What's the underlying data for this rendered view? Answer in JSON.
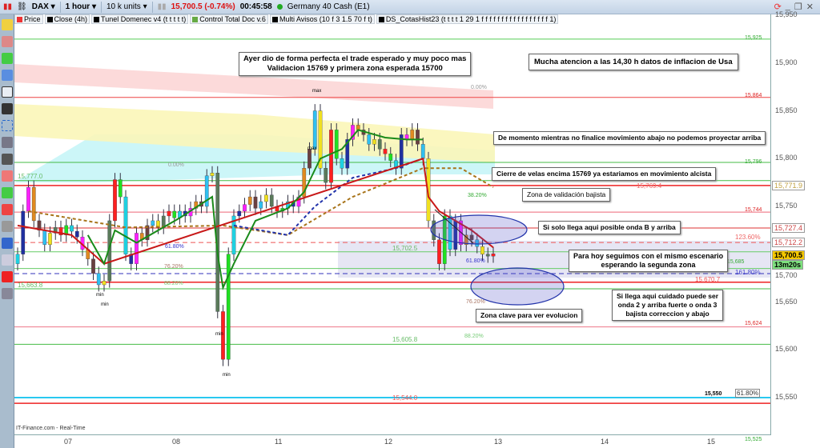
{
  "topbar": {
    "symbol": "DAX ▾",
    "timeframe": "1 hour ▾",
    "units": "10 k units ▾",
    "price": "15,700.5 (-0.74%)",
    "countdown": "00:45:58",
    "instrument": "Germany 40 Cash (E1)"
  },
  "indicators": [
    "Price",
    "Close (4h)",
    "Tunel Domenec v4 (t t t t t)",
    "Control Total Doc v.6",
    "Multi Avisos (10 f 3 1.5 70 f t)",
    "DS_CotasHist23 (t t t t 1 29 1 f f f f f f f f f f f f f f f f f 1)"
  ],
  "window_controls": [
    "⟳",
    "_",
    "❐",
    "✕"
  ],
  "price_axis": {
    "ticks": [
      "15,950",
      "15,900",
      "15,850",
      "15,800",
      "15,750",
      "15,700",
      "15,650",
      "15,600",
      "15,550"
    ],
    "tags": [
      {
        "text": "15,771.9",
        "color": "#c0a040"
      },
      {
        "text": "15,727.4",
        "color": "#c44"
      },
      {
        "text": "15,712.2",
        "color": "#c44"
      },
      {
        "text": "15,700.5",
        "color": "#000",
        "bg": "#f5c800"
      },
      {
        "text": "13m20s",
        "color": "#000",
        "bg": "#7ee07e"
      }
    ]
  },
  "time_axis": [
    "07",
    "08",
    "11",
    "12",
    "13",
    "14",
    "15"
  ],
  "footer": "IT-Finance.com - Real-Time",
  "notes": [
    "Ayer dio de forma perfecta el trade esperado y muy poco mas\nValidacion 15769 y primera zona esperada 15700",
    "Mucha atencion a las 14,30 h datos de inflacion de Usa",
    "De momento mientras no finalice movimiento abajo no podemos proyectar arriba",
    "Cierre de velas encima 15769 ya estariamos en movimiento alcista",
    "Zona de validación bajista",
    "Si solo llega aqui posible onda B y arriba",
    "Para hoy seguimos con el mismo escenario\nesperando la segunda zona",
    "Si llega aqui cuidado puede ser\nonda 2 y arriba fuerte o onda 3\nbajista correccion y abajo",
    "Zona clave para ver evolucion"
  ],
  "level_labels": [
    "15,925",
    "15,864",
    "15,796",
    "15,744",
    "15,685",
    "15,624",
    "15,550",
    "15,525",
    "15,769.4",
    "15,702.5",
    "15,605.8",
    "15,544.0",
    "15,777.0",
    "15,663.8",
    "15,670.7"
  ],
  "fib_labels": [
    "0.00%",
    "0.00%",
    "38.20%",
    "61.80%",
    "61.80%",
    "76.20%",
    "76.20%",
    "88.20%",
    "88.20%",
    "123.60%",
    "161.80%",
    "61.80%"
  ],
  "extreme_labels": [
    "max",
    "max",
    "min",
    "min",
    "min",
    "min"
  ],
  "chart_data": {
    "type": "candlestick",
    "ylim": [
      15520,
      15962
    ],
    "closes": [
      15700,
      15745,
      15770,
      15735,
      15725,
      15710,
      15722,
      15728,
      15720,
      15730,
      15724,
      15718,
      15705,
      15695,
      15680,
      15668,
      15672,
      15735,
      15778,
      15760,
      15700,
      15690,
      15722,
      15715,
      15730,
      15735,
      15728,
      15740,
      15745,
      15738,
      15745,
      15740,
      15748,
      15755,
      15750,
      15782,
      15785,
      15640,
      15590,
      15700,
      15740,
      15745,
      15752,
      15760,
      15748,
      15755,
      15762,
      15750,
      15745,
      15748,
      15755,
      15750,
      15760,
      15790,
      15810,
      15850,
      15790,
      15775,
      15830,
      15800,
      15790,
      15820,
      15835,
      15830,
      15825,
      15815,
      15820,
      15810,
      15805,
      15798,
      15790,
      15825,
      15820,
      15830,
      15815,
      15800,
      15735,
      15715,
      15690,
      15740,
      15705,
      15735,
      15710,
      15720,
      15715,
      15708,
      15700,
      15698,
      15700.5
    ],
    "first_open": 15690,
    "candle_colors": [
      "#1fd0e0",
      "#2030a0",
      "#ff20ff",
      "#e08a20",
      "#6a4040",
      "#30c0f0",
      "#f0e020",
      "#5a7a5a",
      "#ff2020",
      "#20e020"
    ],
    "levels": [
      {
        "price": 15925,
        "color": "#5c5"
      },
      {
        "price": 15864,
        "color": "#e44"
      },
      {
        "price": 15796,
        "color": "#4b4"
      },
      {
        "price": 15777,
        "color": "#4b4"
      },
      {
        "price": 15771.9,
        "color": "#e22",
        "width": 1.5
      },
      {
        "price": 15744,
        "color": "#e67"
      },
      {
        "price": 15727.4,
        "color": "#d33"
      },
      {
        "price": 15712.2,
        "color": "#e55",
        "dash": "6 4"
      },
      {
        "price": 15702.5,
        "color": "#6c6"
      },
      {
        "price": 15685,
        "color": "#6c6"
      },
      {
        "price": 15679.7,
        "color": "#33b",
        "dash": "6 4"
      },
      {
        "price": 15670.7,
        "color": "#e22",
        "width": 1.5
      },
      {
        "price": 15663.8,
        "color": "#4b4"
      },
      {
        "price": 15624,
        "color": "#e78"
      },
      {
        "price": 15605.8,
        "color": "#4b4"
      },
      {
        "price": 15550,
        "color": "#29c8f0",
        "width": 2
      },
      {
        "price": 15544,
        "color": "#e22",
        "width": 1.5
      }
    ],
    "ema_green": [
      [
        13,
        15720
      ],
      [
        16,
        15690
      ],
      [
        18,
        15725
      ],
      [
        22,
        15712
      ],
      [
        30,
        15738
      ],
      [
        36,
        15760
      ],
      [
        37,
        15700
      ],
      [
        38,
        15665
      ],
      [
        40,
        15690
      ],
      [
        44,
        15735
      ],
      [
        50,
        15748
      ],
      [
        53,
        15765
      ],
      [
        56,
        15800
      ],
      [
        60,
        15810
      ],
      [
        63,
        15830
      ],
      [
        68,
        15822
      ],
      [
        72,
        15820
      ],
      [
        75,
        15820
      ]
    ],
    "red_line": [
      [
        0,
        15730
      ],
      [
        10,
        15720
      ],
      [
        16,
        15690
      ],
      [
        75,
        15800
      ],
      [
        76,
        15760
      ],
      [
        78,
        15745
      ],
      [
        84,
        15725
      ],
      [
        88,
        15707
      ]
    ],
    "blue_dashed": [
      [
        40,
        15730
      ],
      [
        50,
        15720
      ],
      [
        55,
        15750
      ],
      [
        62,
        15780
      ],
      [
        70,
        15790
      ],
      [
        75,
        15800
      ]
    ],
    "brown_dashed": [
      [
        2,
        15745
      ],
      [
        20,
        15728
      ],
      [
        38,
        15730
      ],
      [
        50,
        15720
      ],
      [
        62,
        15760
      ],
      [
        75,
        15790
      ],
      [
        82,
        15790
      ],
      [
        88,
        15770
      ]
    ]
  }
}
